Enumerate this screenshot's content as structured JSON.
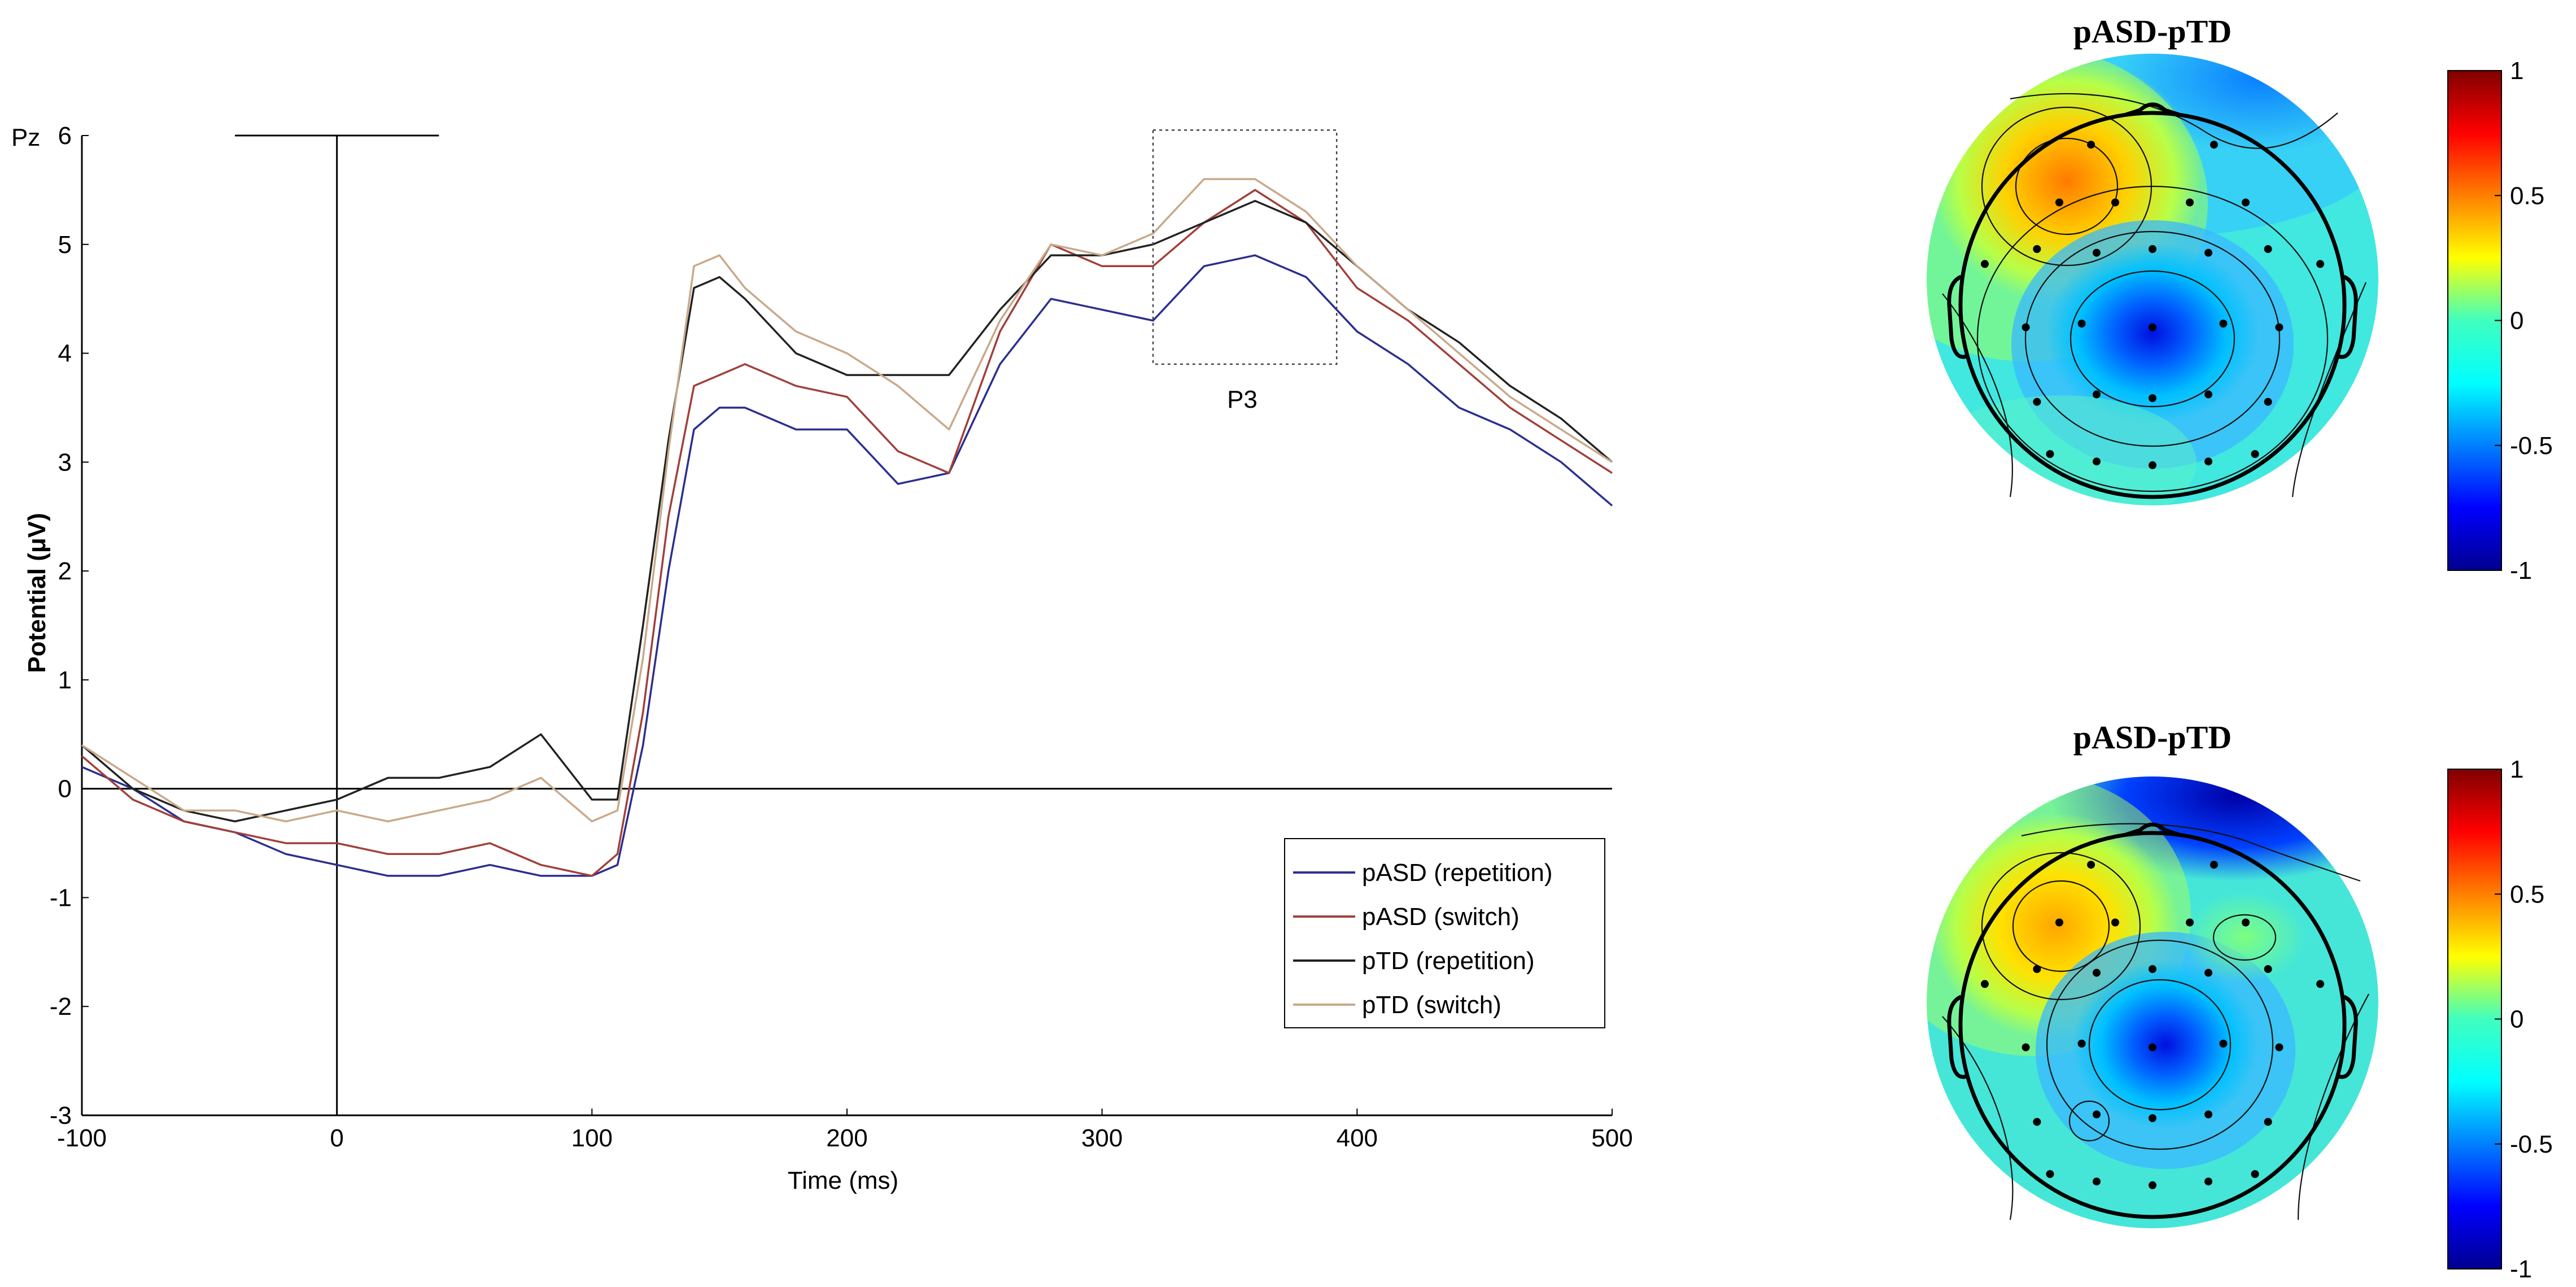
{
  "chart_data": [
    {
      "type": "line",
      "channel_label": "Pz",
      "xlabel": "Time (ms)",
      "ylabel": "Potential (μV)",
      "xlim": [
        -100,
        500
      ],
      "ylim": [
        -3,
        6
      ],
      "x_ticks": [
        "-100",
        "0",
        "100",
        "200",
        "300",
        "400",
        "500"
      ],
      "y_ticks": [
        "6",
        "5",
        "4",
        "3",
        "2",
        "1",
        "0",
        "-1",
        "-2",
        "-3"
      ],
      "annotation": "P3",
      "annotation_box": {
        "x": [
          320,
          392
        ],
        "y": [
          3.9,
          6.05
        ]
      },
      "legend_position": "bottom-right",
      "legend": [
        "pASD (repetition)",
        "pASD (switch)",
        "pTD (repetition)",
        "pTD (switch)"
      ],
      "x": [
        -100,
        -80,
        -60,
        -40,
        -20,
        0,
        20,
        40,
        60,
        80,
        100,
        110,
        120,
        130,
        140,
        150,
        160,
        180,
        200,
        220,
        240,
        260,
        280,
        300,
        320,
        340,
        360,
        380,
        400,
        420,
        440,
        460,
        480,
        500
      ],
      "series": [
        {
          "name": "pASD (repetition)",
          "color": "#2b2f8f",
          "values": [
            0.2,
            0.0,
            -0.3,
            -0.4,
            -0.6,
            -0.7,
            -0.8,
            -0.8,
            -0.7,
            -0.8,
            -0.8,
            -0.7,
            0.4,
            2.0,
            3.3,
            3.5,
            3.5,
            3.3,
            3.3,
            2.8,
            2.9,
            3.9,
            4.5,
            4.4,
            4.3,
            4.8,
            4.9,
            4.7,
            4.2,
            3.9,
            3.5,
            3.3,
            3.0,
            2.6
          ]
        },
        {
          "name": "pASD (switch)",
          "color": "#a0403a",
          "values": [
            0.3,
            -0.1,
            -0.3,
            -0.4,
            -0.5,
            -0.5,
            -0.6,
            -0.6,
            -0.5,
            -0.7,
            -0.8,
            -0.6,
            0.7,
            2.5,
            3.7,
            3.8,
            3.9,
            3.7,
            3.6,
            3.1,
            2.9,
            4.2,
            5.0,
            4.8,
            4.8,
            5.2,
            5.5,
            5.2,
            4.6,
            4.3,
            3.9,
            3.5,
            3.2,
            2.9
          ]
        },
        {
          "name": "pTD (repetition)",
          "color": "#222222",
          "values": [
            0.4,
            0.0,
            -0.2,
            -0.3,
            -0.2,
            -0.1,
            0.1,
            0.1,
            0.2,
            0.5,
            -0.1,
            -0.1,
            1.5,
            3.2,
            4.6,
            4.7,
            4.5,
            4.0,
            3.8,
            3.8,
            3.8,
            4.4,
            4.9,
            4.9,
            5.0,
            5.2,
            5.4,
            5.2,
            4.8,
            4.4,
            4.1,
            3.7,
            3.4,
            3.0
          ]
        },
        {
          "name": "pTD (switch)",
          "color": "#c9a98a",
          "values": [
            0.4,
            0.1,
            -0.2,
            -0.2,
            -0.3,
            -0.2,
            -0.3,
            -0.2,
            -0.1,
            0.1,
            -0.3,
            -0.2,
            1.2,
            3.1,
            4.8,
            4.9,
            4.6,
            4.2,
            4.0,
            3.7,
            3.3,
            4.3,
            5.0,
            4.9,
            5.1,
            5.6,
            5.6,
            5.3,
            4.8,
            4.4,
            4.0,
            3.6,
            3.3,
            3.0
          ]
        }
      ]
    },
    {
      "type": "heatmap",
      "title": "pASD-pTD",
      "colorbar_ticks": [
        "1",
        "0.5",
        "0",
        "-0.5",
        "-1"
      ],
      "clim": [
        -1,
        1
      ],
      "colormap": "jet",
      "extrema": [
        {
          "name": "left-frontal-maximum",
          "value": 0.6
        },
        {
          "name": "central-parietal-minimum",
          "value": -0.95
        },
        {
          "name": "frontal-pole-minimum",
          "value": -0.35
        }
      ]
    },
    {
      "type": "heatmap",
      "title": "pASD-pTD",
      "colorbar_ticks": [
        "1",
        "0.5",
        "0",
        "-0.5",
        "-1"
      ],
      "clim": [
        -1,
        1
      ],
      "colormap": "jet",
      "extrema": [
        {
          "name": "left-frontal-maximum",
          "value": 0.45
        },
        {
          "name": "central-parietal-minimum",
          "value": -0.85
        },
        {
          "name": "frontal-pole-minimum",
          "value": -0.9
        }
      ]
    }
  ]
}
